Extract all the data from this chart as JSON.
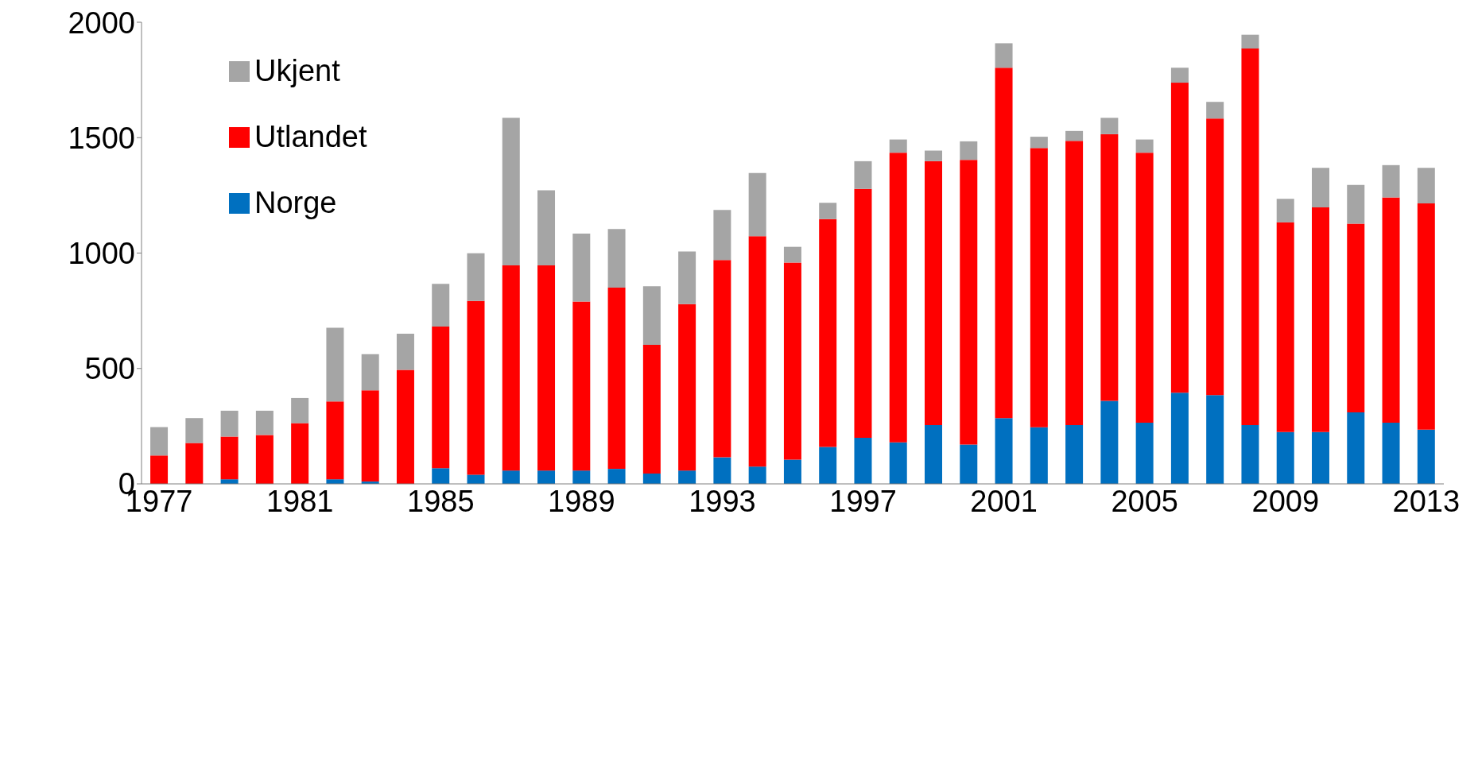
{
  "chart_data": {
    "type": "bar",
    "stacked": true,
    "categories": [
      "1977",
      null,
      null,
      null,
      "1981",
      null,
      null,
      null,
      "1985",
      null,
      null,
      null,
      "1989",
      null,
      null,
      null,
      "1993",
      null,
      null,
      null,
      "1997",
      null,
      null,
      null,
      "2001",
      null,
      null,
      null,
      "2005",
      null,
      null,
      null,
      "2009",
      null,
      null,
      null,
      "2013"
    ],
    "series": [
      {
        "name": "Norge",
        "color": "#0070c0",
        "values": [
          null,
          null,
          20,
          null,
          null,
          20,
          10,
          null,
          68,
          40,
          58,
          58,
          58,
          65,
          45,
          58,
          115,
          75,
          105,
          160,
          200,
          180,
          255,
          170,
          285,
          245,
          255,
          360,
          265,
          395,
          385,
          255,
          225,
          225,
          310,
          265,
          235
        ]
      },
      {
        "name": "Utlandet",
        "color": "#ff0000",
        "values": [
          123,
          177,
          185,
          212,
          263,
          337,
          395,
          494,
          614,
          753,
          889,
          889,
          732,
          785,
          557,
          721,
          855,
          998,
          854,
          987,
          1078,
          1255,
          1143,
          1234,
          1518,
          1210,
          1231,
          1155,
          1170,
          1343,
          1198,
          1631,
          908,
          973,
          817,
          976,
          980
        ]
      },
      {
        "name": "Ukjent",
        "color": "#a5a5a5",
        "values": [
          123,
          108,
          112,
          105,
          109,
          319,
          157,
          157,
          185,
          206,
          639,
          325,
          294,
          254,
          254,
          228,
          217,
          274,
          68,
          71,
          120,
          57,
          46,
          80,
          106,
          49,
          43,
          71,
          57,
          65,
          72,
          60,
          102,
          171,
          168,
          140,
          154
        ]
      }
    ],
    "ylim": [
      0,
      2000
    ],
    "yticks": [
      0,
      500,
      1000,
      1500,
      2000
    ],
    "grid": false,
    "legend": "top left"
  }
}
